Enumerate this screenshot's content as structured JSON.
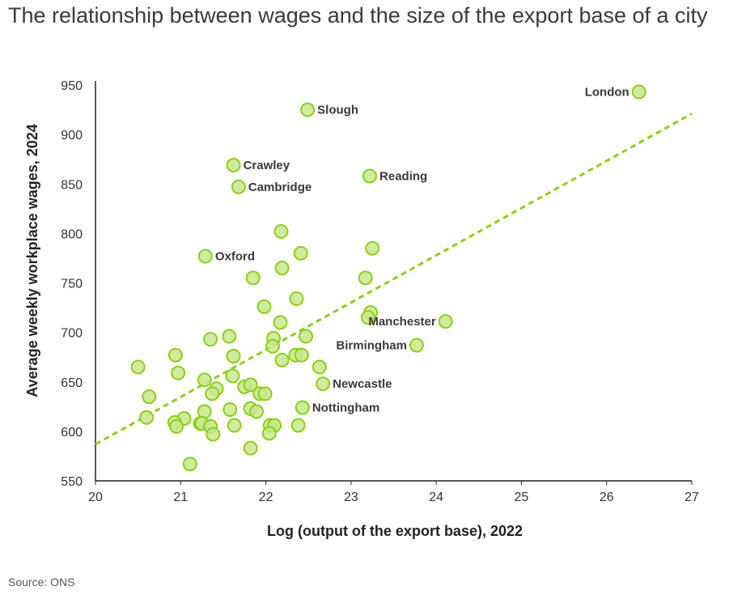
{
  "chart_data": {
    "type": "scatter",
    "title": "The relationship between wages and the size of the export base of a city",
    "xlabel": "Log (output of the export base), 2022",
    "ylabel": "Average weekly workplace wages, 2024",
    "xlim": [
      20,
      27
    ],
    "ylim": [
      550,
      950
    ],
    "xticks": [
      20,
      21,
      22,
      23,
      24,
      25,
      26,
      27
    ],
    "yticks": [
      550,
      600,
      650,
      700,
      750,
      800,
      850,
      900,
      950
    ],
    "source": "Source: ONS",
    "colors": {
      "fill": "#c8e68e",
      "stroke": "#8ccf1a",
      "trend": "#8ccf1a"
    },
    "trendline": {
      "x": [
        20,
        27
      ],
      "y": [
        587,
        921
      ]
    },
    "labeled_points": [
      {
        "name": "London",
        "x": 26.38,
        "y": 943,
        "side": "left"
      },
      {
        "name": "Slough",
        "x": 22.49,
        "y": 925,
        "side": "right"
      },
      {
        "name": "Crawley",
        "x": 21.62,
        "y": 869,
        "side": "right"
      },
      {
        "name": "Cambridge",
        "x": 21.68,
        "y": 847,
        "side": "right"
      },
      {
        "name": "Reading",
        "x": 23.22,
        "y": 858,
        "side": "right"
      },
      {
        "name": "Oxford",
        "x": 21.29,
        "y": 777,
        "side": "right"
      },
      {
        "name": "Manchester",
        "x": 24.11,
        "y": 711,
        "side": "left"
      },
      {
        "name": "Birmingham",
        "x": 23.77,
        "y": 687,
        "side": "left"
      },
      {
        "name": "Newcastle",
        "x": 22.67,
        "y": 648,
        "side": "right"
      },
      {
        "name": "Nottingham",
        "x": 22.43,
        "y": 624,
        "side": "right"
      }
    ],
    "points": [
      [
        22.18,
        802
      ],
      [
        22.41,
        780
      ],
      [
        23.25,
        785
      ],
      [
        22.19,
        765
      ],
      [
        21.85,
        755
      ],
      [
        23.17,
        755
      ],
      [
        21.98,
        726
      ],
      [
        22.36,
        734
      ],
      [
        22.17,
        710
      ],
      [
        23.23,
        720
      ],
      [
        23.2,
        715
      ],
      [
        21.57,
        696
      ],
      [
        21.35,
        693
      ],
      [
        22.09,
        694
      ],
      [
        22.08,
        686
      ],
      [
        22.47,
        696
      ],
      [
        20.94,
        677
      ],
      [
        21.62,
        676
      ],
      [
        22.35,
        677
      ],
      [
        22.42,
        677
      ],
      [
        22.19,
        672
      ],
      [
        20.5,
        665
      ],
      [
        22.63,
        665
      ],
      [
        20.97,
        659
      ],
      [
        21.61,
        656
      ],
      [
        21.28,
        652
      ],
      [
        21.75,
        645
      ],
      [
        21.82,
        647
      ],
      [
        21.42,
        643
      ],
      [
        21.37,
        638
      ],
      [
        21.93,
        638
      ],
      [
        21.99,
        638
      ],
      [
        20.63,
        635
      ],
      [
        21.58,
        622
      ],
      [
        21.82,
        623
      ],
      [
        21.89,
        620
      ],
      [
        21.28,
        620
      ],
      [
        20.6,
        614
      ],
      [
        21.04,
        613
      ],
      [
        20.93,
        609
      ],
      [
        20.95,
        605
      ],
      [
        21.23,
        608
      ],
      [
        21.25,
        608
      ],
      [
        21.35,
        605
      ],
      [
        21.38,
        597
      ],
      [
        21.63,
        606
      ],
      [
        22.05,
        606
      ],
      [
        22.1,
        606
      ],
      [
        22.04,
        598
      ],
      [
        22.38,
        606
      ],
      [
        21.82,
        583
      ],
      [
        21.11,
        567
      ]
    ]
  }
}
